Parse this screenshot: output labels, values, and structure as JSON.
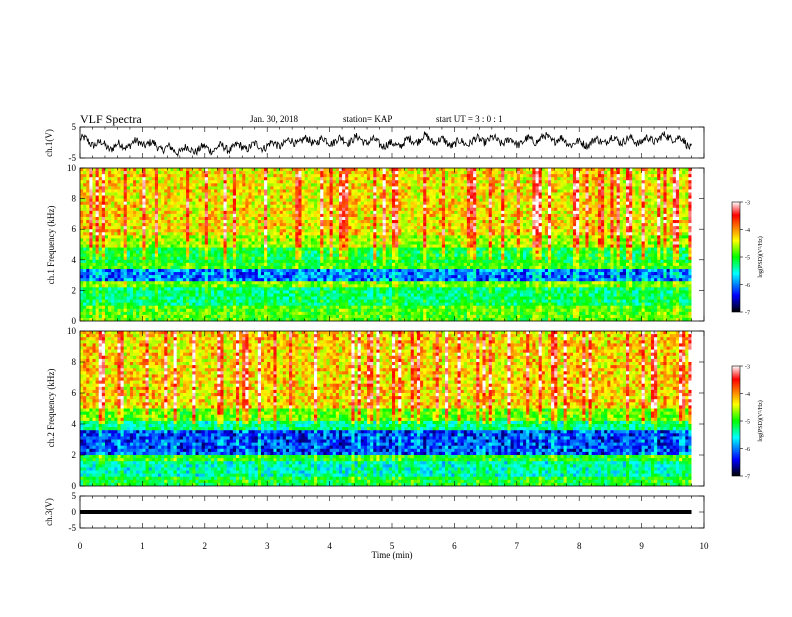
{
  "header": {
    "title": "VLF Spectra",
    "date": "Jan. 30, 2018",
    "station": "station= KAP",
    "start": "start  UT =   3 : 0  : 1"
  },
  "colorbar": {
    "label": "log(PSD)(V²/Hz)",
    "ticks": [
      "-3",
      "-4",
      "-5",
      "-6",
      "-7"
    ],
    "colors": [
      "#ffffff",
      "#ff0000",
      "#ffff00",
      "#00ff00",
      "#00ffff",
      "#0000ff",
      "#000000"
    ]
  },
  "chart_data": [
    {
      "type": "line",
      "name": "ch1-waveform",
      "ylabel": "ch.1(V)",
      "ylim": [
        -5,
        5
      ],
      "yticks": [
        "5",
        "-5"
      ],
      "xlim": [
        0,
        10
      ],
      "x": [
        0,
        0.5,
        1,
        1.5,
        2,
        2.5,
        3,
        3.5,
        4,
        4.5,
        5,
        5.5,
        6,
        6.5,
        7,
        7.5,
        8,
        8.5,
        9,
        9.5,
        9.8
      ],
      "y": [
        1,
        -1.5,
        0,
        -2.5,
        -2,
        -1.5,
        -1,
        0.5,
        0.5,
        1,
        -1,
        1.5,
        -0.5,
        1,
        0,
        1.5,
        -0.5,
        1,
        0.5,
        2,
        -1
      ]
    },
    {
      "type": "heatmap",
      "name": "ch1-spectrogram",
      "ylabel": "ch.1 Frequency (kHz)",
      "ylim": [
        0,
        10
      ],
      "yticks": [
        "0",
        "2",
        "4",
        "6",
        "8",
        "10"
      ],
      "xlim": [
        0,
        10
      ],
      "data_extent_min": 9.8
    },
    {
      "type": "heatmap",
      "name": "ch2-spectrogram",
      "ylabel": "ch.2 Frequency (kHz)",
      "ylim": [
        0,
        10
      ],
      "yticks": [
        "0",
        "2",
        "4",
        "6",
        "8",
        "10"
      ],
      "xlim": [
        0,
        10
      ],
      "data_extent_min": 9.8
    },
    {
      "type": "line",
      "name": "ch3-waveform",
      "ylabel": "ch.3(V)",
      "ylim": [
        -5,
        5
      ],
      "yticks": [
        "5",
        "0",
        "-5"
      ],
      "xlim": [
        0,
        10
      ],
      "x": [
        0,
        9.8
      ],
      "y": [
        0,
        0
      ]
    }
  ],
  "xaxis": {
    "label": "Time  (min)",
    "ticks": [
      "0",
      "1",
      "2",
      "3",
      "4",
      "5",
      "6",
      "7",
      "8",
      "9",
      "10"
    ]
  }
}
